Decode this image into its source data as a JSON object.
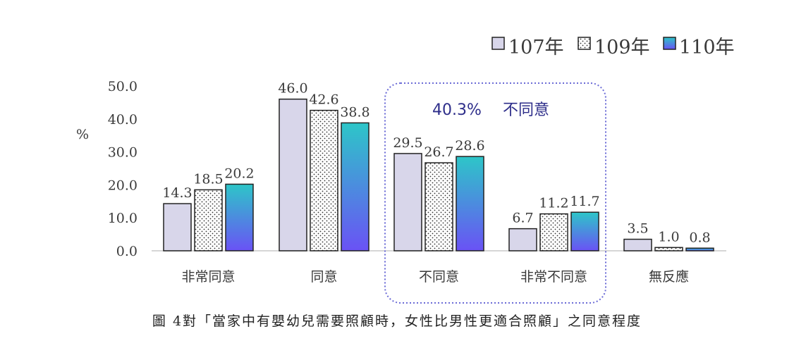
{
  "caption": "圖 4對「當家中有嬰幼兒需要照顧時，女性比男性更適合照顧」之同意程度",
  "chart_data": {
    "type": "bar",
    "ylabel": "%",
    "ylim": [
      0,
      50
    ],
    "yticks": [
      "0.0",
      "10.0",
      "20.0",
      "30.0",
      "40.0",
      "50.0"
    ],
    "categories": [
      "非常同意",
      "同意",
      "不同意",
      "非常不同意",
      "無反應"
    ],
    "series": [
      {
        "name": "107年",
        "values": [
          14.3,
          46.0,
          29.5,
          6.7,
          3.5
        ],
        "labels": [
          "14.3",
          "46.0",
          "29.5",
          "6.7",
          "3.5"
        ],
        "fill": "#d8d6ea"
      },
      {
        "name": "109年",
        "values": [
          18.5,
          42.6,
          26.7,
          11.2,
          1.0
        ],
        "labels": [
          "18.5",
          "42.6",
          "26.7",
          "11.2",
          "1.0"
        ],
        "fill": "dots"
      },
      {
        "name": "110年",
        "values": [
          20.2,
          38.8,
          28.6,
          11.7,
          0.8
        ],
        "labels": [
          "20.2",
          "38.8",
          "28.6",
          "11.7",
          "0.8"
        ],
        "fill": "gradient"
      }
    ],
    "legend_position": "top-right",
    "annotation": {
      "value": "40.3%",
      "text": "不同意"
    },
    "colors": {
      "s107": "#d8d6ea",
      "grad_top": "#2dc6c8",
      "grad_bottom": "#6a52f5",
      "annot_border": "#6b6bd6",
      "annot_text": "#2e2e8a"
    }
  }
}
